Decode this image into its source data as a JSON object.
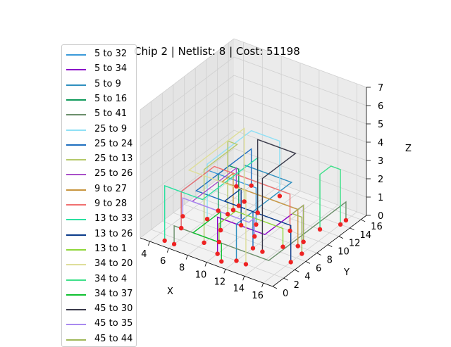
{
  "chart_data": {
    "type": "line",
    "title": "Chip 2  | Netlist: 8  | Cost: 51198",
    "xlabel": "X",
    "ylabel": "Y",
    "zlabel": "Z",
    "xticks": [
      "4",
      "6",
      "8",
      "10",
      "12",
      "14",
      "16"
    ],
    "yticks": [
      "0",
      "2",
      "4",
      "6",
      "8",
      "10",
      "12",
      "14",
      "16"
    ],
    "zticks": [
      "0",
      "1",
      "2",
      "3",
      "4",
      "5",
      "6",
      "7"
    ],
    "xlim": [
      3,
      17
    ],
    "ylim": [
      0,
      17
    ],
    "zlim": [
      0,
      7
    ],
    "grid": true,
    "legend_position": "left",
    "series": [
      {
        "name": "5 to 32",
        "color": "#3a9ad9"
      },
      {
        "name": "5 to 34",
        "color": "#8a00c8"
      },
      {
        "name": "5 to 9",
        "color": "#2f8fbf"
      },
      {
        "name": "5 to 16",
        "color": "#0f9a5a"
      },
      {
        "name": "5 to 41",
        "color": "#6b8f6b"
      },
      {
        "name": "25 to 9",
        "color": "#8fe0f5"
      },
      {
        "name": "25 to 24",
        "color": "#1f6fbf"
      },
      {
        "name": "25 to 13",
        "color": "#b5c96a"
      },
      {
        "name": "25 to 26",
        "color": "#a94fc9"
      },
      {
        "name": "9 to 27",
        "color": "#c8963f"
      },
      {
        "name": "9 to 28",
        "color": "#f07070"
      },
      {
        "name": "13 to 33",
        "color": "#2ae0a0"
      },
      {
        "name": "13 to 26",
        "color": "#0a3a8a"
      },
      {
        "name": "13 to 1",
        "color": "#8fd63a"
      },
      {
        "name": "34 to 20",
        "color": "#dede9a"
      },
      {
        "name": "34 to 4",
        "color": "#3fe08a"
      },
      {
        "name": "34 to 37",
        "color": "#10c030"
      },
      {
        "name": "45 to 30",
        "color": "#3a3a4a"
      },
      {
        "name": "45 to 35",
        "color": "#a98af0"
      },
      {
        "name": "45 to 44",
        "color": "#a0b85a"
      }
    ],
    "gates_color": "#ee2222"
  }
}
